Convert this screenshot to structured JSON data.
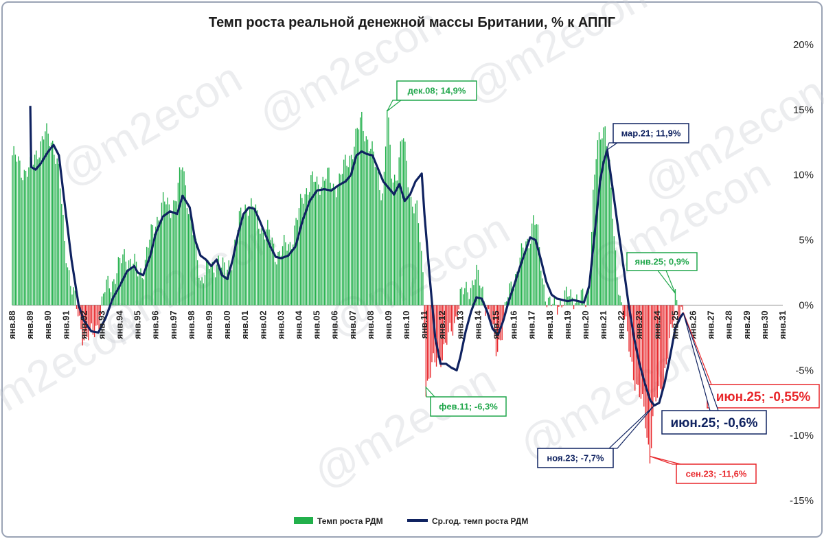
{
  "colors": {
    "bar_positive": "#22b04b",
    "bar_negative": "#e8262a",
    "line": "#0f2260",
    "ann_green": "#1fa64a",
    "ann_navy": "#0f2260",
    "ann_red": "#e8262a"
  },
  "watermark": "@m2econ",
  "chart_data": {
    "type": "bar+line",
    "title": "Темп роста реальной денежной массы Британии, % к АППГ",
    "ylim": [
      -15,
      20
    ],
    "y_ticks": [
      "20%",
      "15%",
      "10%",
      "5%",
      "0%",
      "-5%",
      "-10%",
      "-15%"
    ],
    "y_tick_values": [
      20,
      15,
      10,
      5,
      0,
      -5,
      -10,
      -15
    ],
    "x_range": [
      1988.0,
      2031.0
    ],
    "x_ticks": [
      "янв.88",
      "янв.89",
      "янв.90",
      "янв.91",
      "янв.92",
      "янв.93",
      "янв.94",
      "янв.95",
      "янв.96",
      "янв.97",
      "янв.98",
      "янв.99",
      "янв.00",
      "янв.01",
      "янв.02",
      "янв.03",
      "янв.04",
      "янв.05",
      "янв.06",
      "янв.07",
      "янв.08",
      "янв.09",
      "янв.10",
      "янв.11",
      "янв.12",
      "янв.13",
      "янв.14",
      "янв.15",
      "янв.16",
      "янв.17",
      "янв.18",
      "янв.19",
      "янв.20",
      "янв.21",
      "янв.22",
      "янв.23",
      "янв.24",
      "янв.25",
      "янв.26",
      "янв.27",
      "янв.28",
      "янв.29",
      "янв.30",
      "янв.31"
    ],
    "bar_series": {
      "name": "Темп роста РДМ",
      "monthly_from": "янв.88",
      "anchors": [
        [
          1988.0,
          11.5
        ],
        [
          1988.5,
          10.5
        ],
        [
          1989.0,
          10.3
        ],
        [
          1989.4,
          12.0
        ],
        [
          1989.8,
          13.0
        ],
        [
          1990.3,
          12.6
        ],
        [
          1990.6,
          10.0
        ],
        [
          1990.9,
          5.0
        ],
        [
          1991.3,
          1.5
        ],
        [
          1991.6,
          -0.5
        ],
        [
          1991.9,
          -2.0
        ],
        [
          1992.3,
          -2.6
        ],
        [
          1992.6,
          -2.0
        ],
        [
          1992.9,
          -0.5
        ],
        [
          1993.2,
          1.2
        ],
        [
          1993.6,
          2.0
        ],
        [
          1994.0,
          3.0
        ],
        [
          1994.3,
          4.0
        ],
        [
          1994.7,
          3.2
        ],
        [
          1995.0,
          2.5
        ],
        [
          1995.3,
          2.8
        ],
        [
          1995.6,
          4.5
        ],
        [
          1996.0,
          6.5
        ],
        [
          1996.4,
          7.8
        ],
        [
          1996.8,
          7.5
        ],
        [
          1997.2,
          8.5
        ],
        [
          1997.5,
          10.8
        ],
        [
          1997.8,
          8.0
        ],
        [
          1998.2,
          4.5
        ],
        [
          1998.5,
          2.0
        ],
        [
          1998.8,
          3.0
        ],
        [
          1999.2,
          2.5
        ],
        [
          1999.5,
          3.8
        ],
        [
          1999.9,
          2.2
        ],
        [
          2000.3,
          4.0
        ],
        [
          2000.7,
          6.5
        ],
        [
          2001.1,
          8.0
        ],
        [
          2001.5,
          7.2
        ],
        [
          2001.9,
          6.0
        ],
        [
          2002.3,
          5.5
        ],
        [
          2002.7,
          4.0
        ],
        [
          2003.1,
          4.2
        ],
        [
          2003.5,
          4.8
        ],
        [
          2003.9,
          6.5
        ],
        [
          2004.3,
          8.8
        ],
        [
          2004.7,
          9.5
        ],
        [
          2005.0,
          9.2
        ],
        [
          2005.5,
          10.0
        ],
        [
          2005.9,
          9.0
        ],
        [
          2006.3,
          9.8
        ],
        [
          2006.7,
          11.0
        ],
        [
          2007.1,
          12.5
        ],
        [
          2007.5,
          14.2
        ],
        [
          2007.9,
          12.5
        ],
        [
          2008.3,
          10.5
        ],
        [
          2008.7,
          8.5
        ],
        [
          2008.92,
          14.9
        ],
        [
          2009.2,
          9.5
        ],
        [
          2009.5,
          10.5
        ],
        [
          2009.8,
          13.0
        ],
        [
          2010.2,
          8.5
        ],
        [
          2010.6,
          7.0
        ],
        [
          2010.95,
          2.0
        ],
        [
          2011.08,
          -6.3
        ],
        [
          2011.4,
          -5.0
        ],
        [
          2011.8,
          -4.0
        ],
        [
          2012.2,
          -3.2
        ],
        [
          2012.6,
          -1.5
        ],
        [
          2013.0,
          0.5
        ],
        [
          2013.5,
          1.5
        ],
        [
          2013.9,
          2.2
        ],
        [
          2014.3,
          1.0
        ],
        [
          2014.7,
          -1.5
        ],
        [
          2015.0,
          -3.5
        ],
        [
          2015.3,
          -2.0
        ],
        [
          2015.7,
          0.8
        ],
        [
          2016.1,
          2.5
        ],
        [
          2016.5,
          4.0
        ],
        [
          2016.9,
          5.5
        ],
        [
          2017.1,
          6.8
        ],
        [
          2017.3,
          5.5
        ],
        [
          2017.6,
          2.0
        ],
        [
          2017.9,
          0.2
        ],
        [
          2018.2,
          -0.3
        ],
        [
          2018.5,
          0.3
        ],
        [
          2018.9,
          0.5
        ],
        [
          2019.3,
          0.8
        ],
        [
          2019.7,
          0.4
        ],
        [
          2020.0,
          0.2
        ],
        [
          2020.2,
          2.0
        ],
        [
          2020.4,
          8.0
        ],
        [
          2020.6,
          11.5
        ],
        [
          2020.9,
          13.5
        ],
        [
          2021.1,
          14.0
        ],
        [
          2021.3,
          11.0
        ],
        [
          2021.6,
          4.5
        ],
        [
          2021.9,
          1.0
        ],
        [
          2022.2,
          -1.5
        ],
        [
          2022.5,
          -4.0
        ],
        [
          2022.9,
          -6.5
        ],
        [
          2023.3,
          -8.5
        ],
        [
          2023.58,
          -11.6
        ],
        [
          2023.8,
          -8.0
        ],
        [
          2024.2,
          -6.5
        ],
        [
          2024.6,
          -3.5
        ],
        [
          2024.9,
          -1.5
        ],
        [
          2025.0,
          0.9
        ],
        [
          2025.2,
          -0.2
        ],
        [
          2025.45,
          -0.55
        ]
      ]
    },
    "line_series": {
      "name": "Ср.год. темп роста РДМ",
      "anchors": [
        [
          1989.0,
          15.3
        ],
        [
          1989.05,
          10.6
        ],
        [
          1989.3,
          10.4
        ],
        [
          1989.6,
          10.9
        ],
        [
          1990.0,
          11.8
        ],
        [
          1990.3,
          12.3
        ],
        [
          1990.6,
          11.5
        ],
        [
          1990.9,
          8.0
        ],
        [
          1991.3,
          3.5
        ],
        [
          1991.7,
          0.0
        ],
        [
          1992.0,
          -1.2
        ],
        [
          1992.4,
          -2.0
        ],
        [
          1992.8,
          -2.1
        ],
        [
          1993.2,
          -1.0
        ],
        [
          1993.6,
          0.5
        ],
        [
          1994.0,
          1.5
        ],
        [
          1994.4,
          2.6
        ],
        [
          1994.8,
          3.0
        ],
        [
          1995.0,
          2.5
        ],
        [
          1995.3,
          2.3
        ],
        [
          1995.7,
          3.8
        ],
        [
          1996.0,
          5.5
        ],
        [
          1996.4,
          6.8
        ],
        [
          1996.8,
          7.2
        ],
        [
          1997.2,
          7.0
        ],
        [
          1997.5,
          8.4
        ],
        [
          1997.9,
          7.5
        ],
        [
          1998.2,
          5.0
        ],
        [
          1998.5,
          3.8
        ],
        [
          1998.8,
          3.5
        ],
        [
          1999.1,
          3.0
        ],
        [
          1999.4,
          3.5
        ],
        [
          1999.7,
          2.3
        ],
        [
          2000.0,
          2.0
        ],
        [
          2000.3,
          3.5
        ],
        [
          2000.6,
          5.5
        ],
        [
          2000.9,
          7.0
        ],
        [
          2001.2,
          7.5
        ],
        [
          2001.5,
          7.4
        ],
        [
          2001.8,
          6.5
        ],
        [
          2002.1,
          5.5
        ],
        [
          2002.4,
          4.5
        ],
        [
          2002.7,
          3.7
        ],
        [
          2003.0,
          3.6
        ],
        [
          2003.4,
          3.8
        ],
        [
          2003.8,
          4.5
        ],
        [
          2004.2,
          6.5
        ],
        [
          2004.6,
          8.0
        ],
        [
          2005.0,
          8.8
        ],
        [
          2005.4,
          8.9
        ],
        [
          2005.8,
          8.8
        ],
        [
          2006.2,
          9.2
        ],
        [
          2006.6,
          9.5
        ],
        [
          2006.9,
          10.0
        ],
        [
          2007.2,
          11.5
        ],
        [
          2007.5,
          11.8
        ],
        [
          2007.8,
          11.6
        ],
        [
          2008.1,
          11.5
        ],
        [
          2008.4,
          10.5
        ],
        [
          2008.7,
          9.5
        ],
        [
          2009.0,
          9.0
        ],
        [
          2009.3,
          8.5
        ],
        [
          2009.6,
          9.3
        ],
        [
          2009.9,
          8.0
        ],
        [
          2010.2,
          8.5
        ],
        [
          2010.5,
          9.5
        ],
        [
          2010.85,
          10.1
        ],
        [
          2011.0,
          7.0
        ],
        [
          2011.3,
          2.0
        ],
        [
          2011.6,
          -2.5
        ],
        [
          2011.9,
          -4.5
        ],
        [
          2012.2,
          -4.5
        ],
        [
          2012.5,
          -4.8
        ],
        [
          2012.8,
          -5.0
        ],
        [
          2013.0,
          -4.0
        ],
        [
          2013.3,
          -2.0
        ],
        [
          2013.6,
          -0.5
        ],
        [
          2013.9,
          0.6
        ],
        [
          2014.2,
          0.5
        ],
        [
          2014.5,
          -0.5
        ],
        [
          2014.8,
          -1.8
        ],
        [
          2015.1,
          -2.3
        ],
        [
          2015.4,
          -1.2
        ],
        [
          2015.7,
          0.3
        ],
        [
          2016.0,
          1.5
        ],
        [
          2016.3,
          2.8
        ],
        [
          2016.6,
          4.0
        ],
        [
          2016.9,
          5.2
        ],
        [
          2017.2,
          5.0
        ],
        [
          2017.5,
          3.5
        ],
        [
          2017.8,
          1.8
        ],
        [
          2018.1,
          0.8
        ],
        [
          2018.4,
          0.5
        ],
        [
          2018.7,
          0.4
        ],
        [
          2019.0,
          0.3
        ],
        [
          2019.3,
          0.4
        ],
        [
          2019.6,
          0.3
        ],
        [
          2019.9,
          0.2
        ],
        [
          2020.2,
          1.5
        ],
        [
          2020.5,
          5.5
        ],
        [
          2020.8,
          9.5
        ],
        [
          2021.0,
          11.0
        ],
        [
          2021.2,
          11.9
        ],
        [
          2021.5,
          9.0
        ],
        [
          2021.8,
          6.0
        ],
        [
          2022.1,
          3.0
        ],
        [
          2022.4,
          0.0
        ],
        [
          2022.7,
          -2.5
        ],
        [
          2023.0,
          -4.5
        ],
        [
          2023.3,
          -6.0
        ],
        [
          2023.6,
          -7.3
        ],
        [
          2023.83,
          -7.7
        ],
        [
          2024.1,
          -7.5
        ],
        [
          2024.4,
          -6.0
        ],
        [
          2024.7,
          -4.0
        ],
        [
          2025.0,
          -1.8
        ],
        [
          2025.3,
          -0.9
        ],
        [
          2025.45,
          -0.6
        ]
      ]
    },
    "annotations": [
      {
        "label": "дек.08; 14,9%",
        "x": 2008.92,
        "y": 14.9,
        "color": "ann_green"
      },
      {
        "label": "мар.21; 11,9%",
        "x": 2021.17,
        "y": 11.9,
        "color": "ann_navy"
      },
      {
        "label": "янв.25; 0,9%",
        "x": 2025.0,
        "y": 0.9,
        "color": "ann_green"
      },
      {
        "label": "фев.11; -6,3%",
        "x": 2011.08,
        "y": -6.3,
        "color": "ann_green"
      },
      {
        "label": "ноя.23; -7,7%",
        "x": 2023.83,
        "y": -7.7,
        "color": "ann_navy"
      },
      {
        "label": "сен.23; -11,6%",
        "x": 2023.58,
        "y": -11.6,
        "color": "ann_red"
      },
      {
        "label": "июн.25; -0,55%",
        "x": 2025.45,
        "y": -0.55,
        "color": "ann_red"
      },
      {
        "label": "июн.25; -0,6%",
        "x": 2025.45,
        "y": -0.6,
        "color": "ann_navy"
      }
    ],
    "legend": {
      "position": "bottom",
      "items": [
        {
          "label": "Темп роста РДМ",
          "kind": "bar"
        },
        {
          "label": "Ср.год. темп роста РДМ",
          "kind": "line"
        }
      ]
    }
  }
}
